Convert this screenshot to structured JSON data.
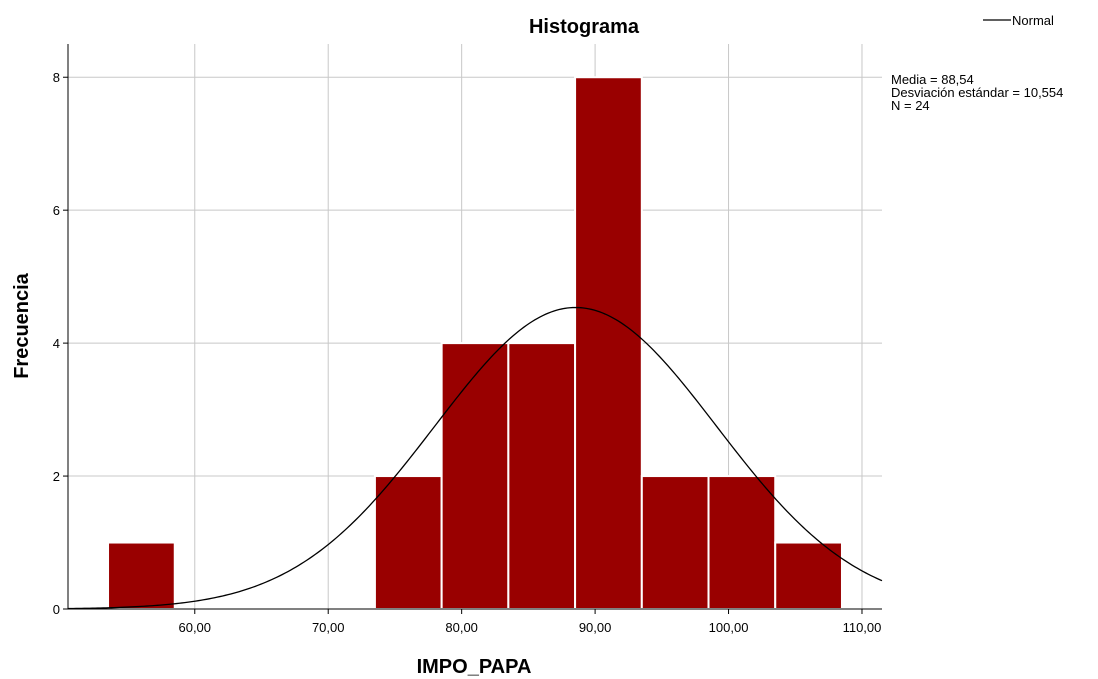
{
  "chart_data": {
    "type": "bar",
    "title": "Histograma",
    "xlabel": "IMPO_PAPA",
    "ylabel": "Frecuencia",
    "xlim": [
      50.5,
      111.5
    ],
    "ylim": [
      0,
      8.5
    ],
    "x_ticks": [
      60,
      70,
      80,
      90,
      100,
      110
    ],
    "x_tick_labels": [
      "60,00",
      "70,00",
      "80,00",
      "90,00",
      "100,00",
      "110,00"
    ],
    "y_ticks": [
      0,
      2,
      4,
      6,
      8
    ],
    "y_tick_labels": [
      "0",
      "2",
      "4",
      "6",
      "8"
    ],
    "bins": [
      {
        "start": 53.5,
        "end": 58.5,
        "count": 1
      },
      {
        "start": 73.5,
        "end": 78.5,
        "count": 2
      },
      {
        "start": 78.5,
        "end": 83.5,
        "count": 4
      },
      {
        "start": 83.5,
        "end": 88.5,
        "count": 4
      },
      {
        "start": 88.5,
        "end": 93.5,
        "count": 8
      },
      {
        "start": 93.5,
        "end": 98.5,
        "count": 2
      },
      {
        "start": 98.5,
        "end": 103.5,
        "count": 2
      },
      {
        "start": 103.5,
        "end": 108.5,
        "count": 1
      }
    ],
    "normal_curve": {
      "mean": 88.54,
      "sd": 10.554,
      "n": 24,
      "bin_width": 5
    },
    "legend": {
      "entries": [
        "Normal"
      ],
      "placement": "top-right"
    },
    "stats_lines": [
      "Media = 88,54",
      "Desviación estándar = 10,554",
      "N = 24"
    ],
    "grid": true
  }
}
